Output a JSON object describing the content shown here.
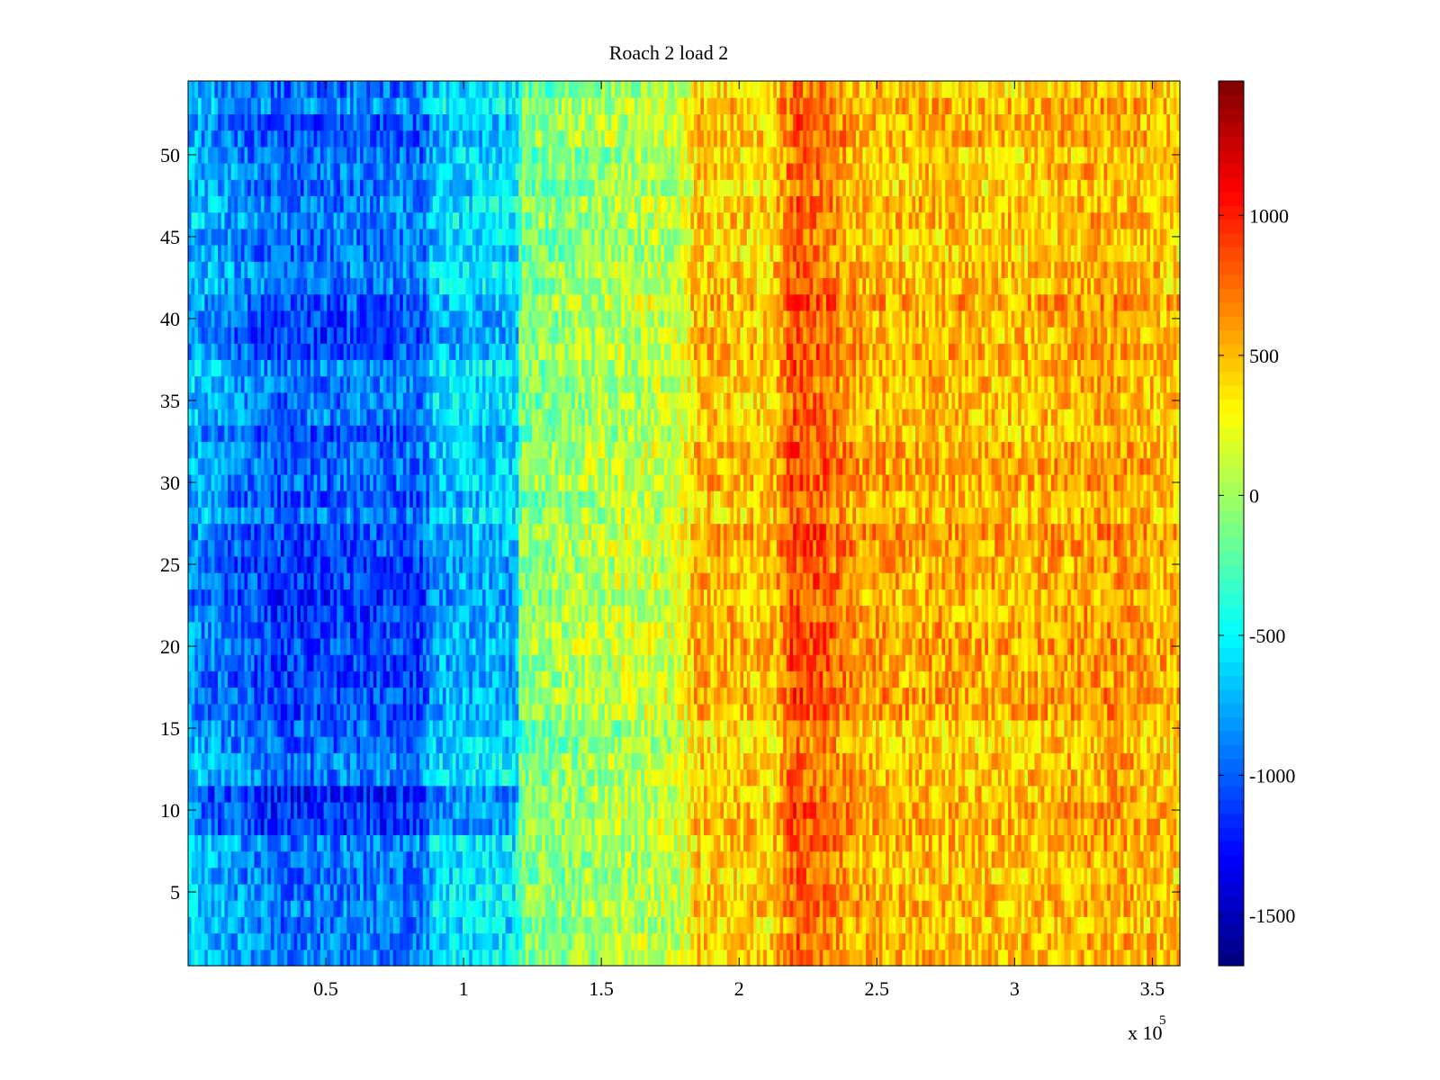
{
  "chart_data": {
    "type": "heatmap",
    "title": "Roach 2 load 2",
    "xlabel": "",
    "ylabel": "",
    "x_multiplier_label": {
      "base": "x 10",
      "exponent": "5"
    },
    "xlim": [
      0,
      360000
    ],
    "ylim": [
      0.5,
      54.5
    ],
    "x_ticks": [
      {
        "value": 50000,
        "label": "0.5"
      },
      {
        "value": 100000,
        "label": "1"
      },
      {
        "value": 150000,
        "label": "1.5"
      },
      {
        "value": 200000,
        "label": "2"
      },
      {
        "value": 250000,
        "label": "2.5"
      },
      {
        "value": 300000,
        "label": "3"
      },
      {
        "value": 350000,
        "label": "3.5"
      }
    ],
    "y_ticks": [
      {
        "value": 5,
        "label": "5"
      },
      {
        "value": 10,
        "label": "10"
      },
      {
        "value": 15,
        "label": "15"
      },
      {
        "value": 20,
        "label": "20"
      },
      {
        "value": 25,
        "label": "25"
      },
      {
        "value": 30,
        "label": "30"
      },
      {
        "value": 35,
        "label": "35"
      },
      {
        "value": 40,
        "label": "40"
      },
      {
        "value": 45,
        "label": "45"
      },
      {
        "value": 50,
        "label": "50"
      }
    ],
    "rows": 54,
    "colormap": "jet",
    "clim": [
      -1680,
      1480
    ],
    "colorbar_ticks": [
      {
        "value": 1000,
        "label": "1000"
      },
      {
        "value": 500,
        "label": "500"
      },
      {
        "value": 0,
        "label": "0"
      },
      {
        "value": -500,
        "label": "-500"
      },
      {
        "value": -1000,
        "label": "-1000"
      },
      {
        "value": -1500,
        "label": "-1500"
      }
    ],
    "column_profile": [
      {
        "x": 0,
        "v": -650
      },
      {
        "x": 15000,
        "v": -800
      },
      {
        "x": 35000,
        "v": -950
      },
      {
        "x": 60000,
        "v": -900
      },
      {
        "x": 85000,
        "v": -900
      },
      {
        "x": 90000,
        "v": -600
      },
      {
        "x": 119000,
        "v": -550
      },
      {
        "x": 121000,
        "v": -150
      },
      {
        "x": 150000,
        "v": 0
      },
      {
        "x": 178000,
        "v": 100
      },
      {
        "x": 185000,
        "v": 450
      },
      {
        "x": 212000,
        "v": 400
      },
      {
        "x": 220000,
        "v": 800
      },
      {
        "x": 232000,
        "v": 700
      },
      {
        "x": 245000,
        "v": 500
      },
      {
        "x": 300000,
        "v": 450
      },
      {
        "x": 335000,
        "v": 550
      },
      {
        "x": 360000,
        "v": 420
      }
    ],
    "row_bands": [
      {
        "rows": [
          9,
          11
        ],
        "left_offset": -250,
        "right_offset": 60
      },
      {
        "rows": [
          16,
          27
        ],
        "left_offset": -200,
        "right_offset": 70
      },
      {
        "rows": [
          29,
          33
        ],
        "left_offset": -100,
        "right_offset": 40
      },
      {
        "rows": [
          38,
          41
        ],
        "left_offset": -150,
        "right_offset": 60
      },
      {
        "rows": [
          51,
          52
        ],
        "left_offset": -120,
        "right_offset": 40
      }
    ]
  }
}
